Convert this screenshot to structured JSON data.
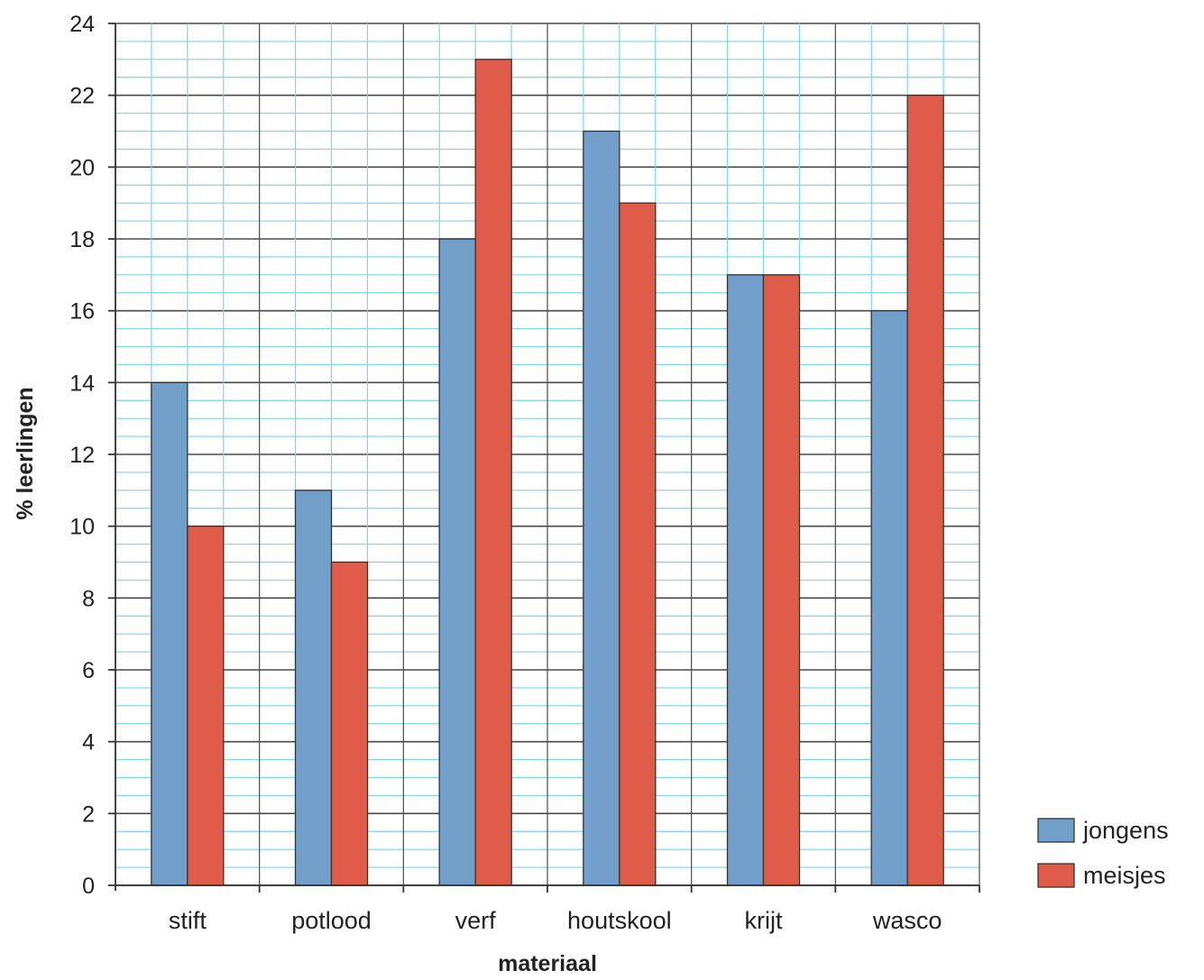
{
  "chart_data": {
    "type": "bar",
    "title": "",
    "xlabel": "materiaal",
    "ylabel": "% leerlingen",
    "ylim": [
      0,
      24
    ],
    "ytick_step": 2,
    "yticks": [
      "0",
      "2",
      "4",
      "6",
      "8",
      "10",
      "12",
      "14",
      "16",
      "18",
      "20",
      "22",
      "24"
    ],
    "grid": true,
    "legend_position": "bottom-right",
    "categories": [
      "stift",
      "potlood",
      "verf",
      "houtskool",
      "krijt",
      "wasco"
    ],
    "series": [
      {
        "name": "jongens",
        "color": "#729fca",
        "values": [
          14,
          11,
          18,
          21,
          17,
          16
        ]
      },
      {
        "name": "meisjes",
        "color": "#e05c4a",
        "values": [
          10,
          9,
          23,
          19,
          17,
          22
        ]
      }
    ],
    "colors": {
      "minor_grid": "#7fd3ea",
      "major_grid": "#4a4a4a",
      "bar_outline": "#333333",
      "axis": "#333333"
    }
  }
}
